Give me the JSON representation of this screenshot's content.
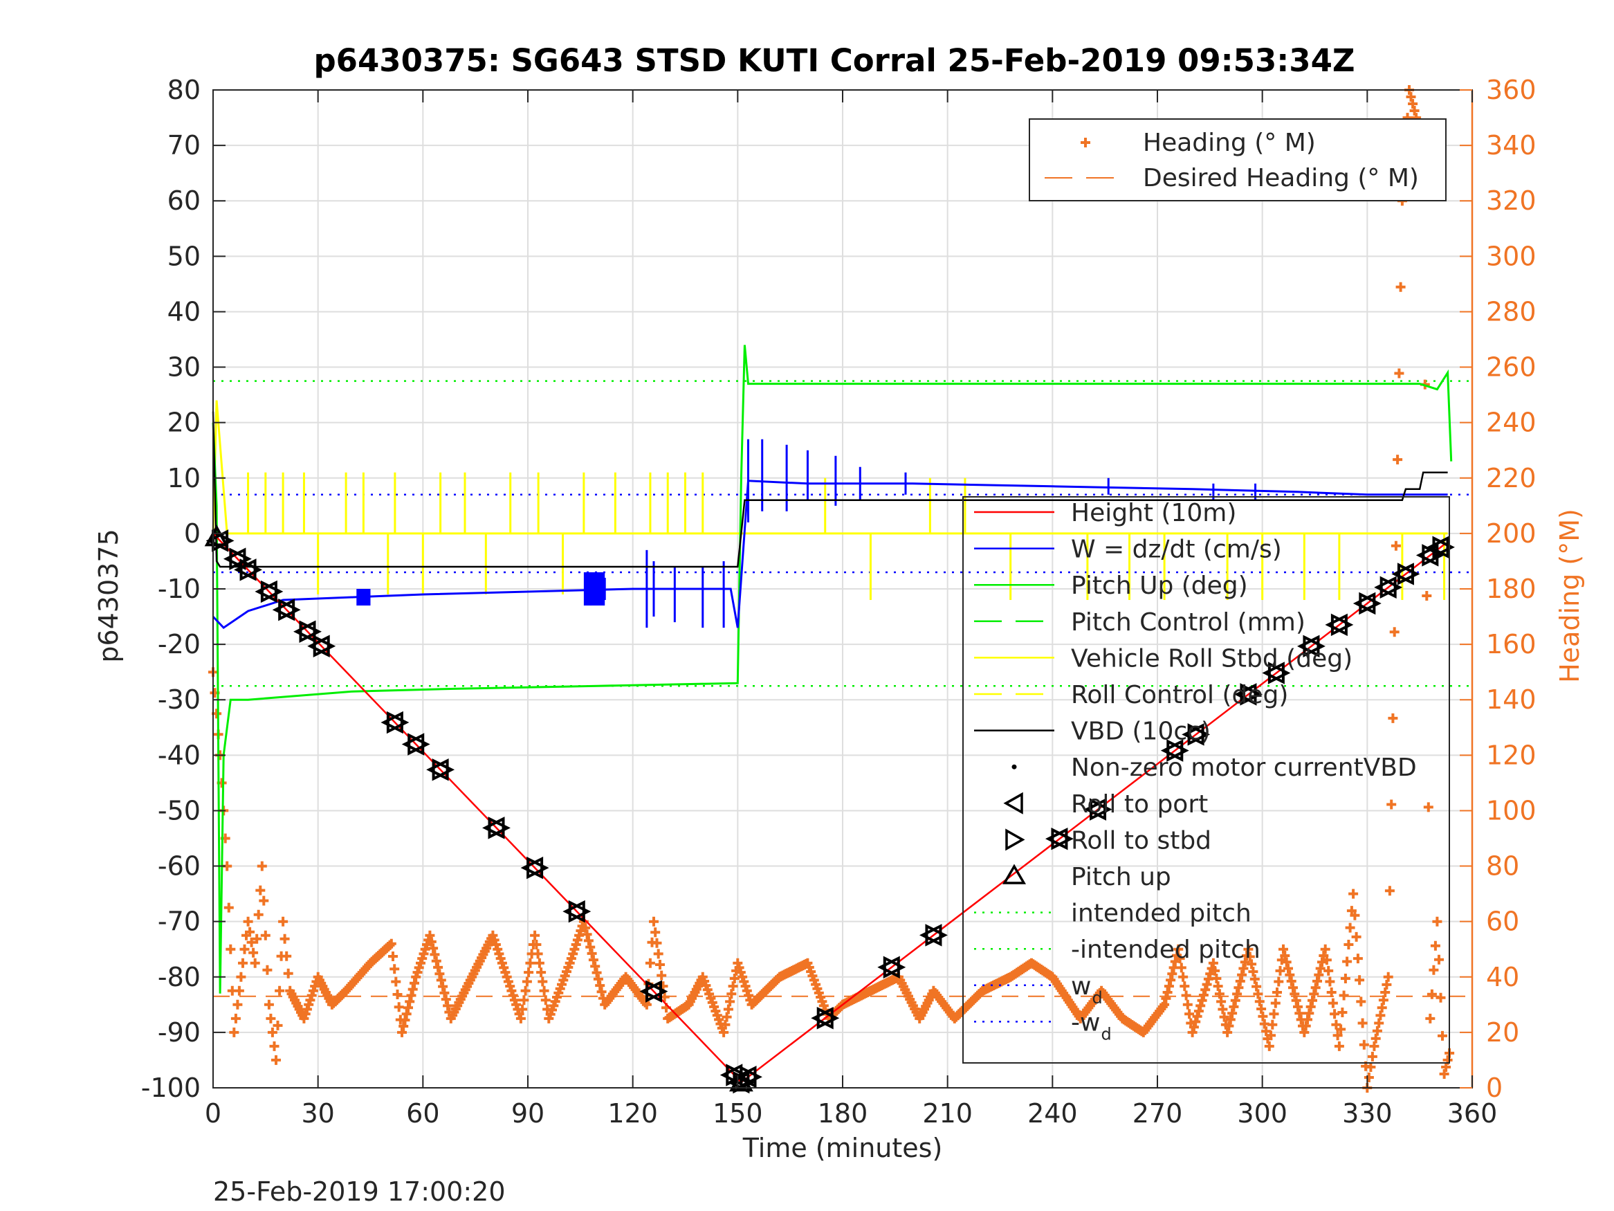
{
  "chart_data": {
    "type": "line",
    "title": "p6430375: SG643 STSD KUTI Corral 25-Feb-2019 09:53:34Z",
    "xlabel": "Time (minutes)",
    "ylabel": "p6430375",
    "ylabel_right": "Heading (°M)",
    "footer": "25-Feb-2019 17:00:20",
    "xlim": [
      0,
      360
    ],
    "ylim": [
      -100,
      80
    ],
    "ylim_right": [
      0,
      360
    ],
    "x_ticks": [
      "0",
      "30",
      "60",
      "90",
      "120",
      "150",
      "180",
      "210",
      "240",
      "270",
      "300",
      "330",
      "360"
    ],
    "y_ticks": [
      "80",
      "70",
      "60",
      "50",
      "40",
      "30",
      "20",
      "10",
      "0",
      "-10",
      "-20",
      "-30",
      "-40",
      "-50",
      "-60",
      "-70",
      "-80",
      "-90",
      "-100"
    ],
    "y_ticks_right": [
      "360",
      "340",
      "320",
      "300",
      "280",
      "260",
      "240",
      "220",
      "200",
      "180",
      "160",
      "140",
      "120",
      "100",
      "80",
      "60",
      "40",
      "20",
      "0"
    ],
    "grid": true,
    "colors": {
      "height": "#ff0000",
      "w": "#0000ff",
      "pitch": "#00ee00",
      "roll": "#ffff00",
      "vbd": "#000000",
      "heading": "#f07424",
      "axes": "#262626"
    },
    "legend_heading": [
      {
        "label": "Heading (° M)",
        "style": "plus"
      },
      {
        "label": "Desired Heading (° M)",
        "style": "dash"
      }
    ],
    "legend_main": [
      {
        "label": "Height (10m)",
        "style": "line",
        "color": "#ff0000"
      },
      {
        "label": "W = dz/dt (cm/s)",
        "style": "line",
        "color": "#0000ff"
      },
      {
        "label": "Pitch Up (deg)",
        "style": "line",
        "color": "#00ee00"
      },
      {
        "label": "Pitch Control (mm)",
        "style": "dash",
        "color": "#00ee00"
      },
      {
        "label": "Vehicle Roll Stbd (deg)",
        "style": "line",
        "color": "#ffff00"
      },
      {
        "label": "Roll Control (deg)",
        "style": "dash",
        "color": "#ffff00"
      },
      {
        "label": "VBD (10cc)",
        "style": "line",
        "color": "#000000"
      },
      {
        "label": "Non-zero motor currentVBD",
        "style": "dot",
        "color": "#000000"
      },
      {
        "label": "Roll to port",
        "style": "tri-left",
        "color": "#000000"
      },
      {
        "label": "Roll to stbd",
        "style": "tri-right",
        "color": "#000000"
      },
      {
        "label": "Pitch up",
        "style": "tri-up",
        "color": "#000000"
      },
      {
        "label": "intended pitch",
        "style": "dot-line",
        "color": "#00ee00"
      },
      {
        "label": "-intended pitch",
        "style": "dot-line",
        "color": "#00ee00"
      },
      {
        "label": "w",
        "sub": "d",
        "style": "dot-line",
        "color": "#0000ff"
      },
      {
        "label": "-w",
        "sub": "d",
        "style": "dot-line",
        "color": "#0000ff"
      }
    ],
    "series": [
      {
        "name": "Height (10m)",
        "axis": "left",
        "x": [
          0,
          151,
          352
        ],
        "y": [
          0,
          -99,
          -2
        ]
      },
      {
        "name": "Pitch Up (deg)",
        "axis": "left",
        "x": [
          0,
          1,
          2,
          3,
          5,
          10,
          40,
          70,
          110,
          150,
          151,
          152,
          153,
          200,
          300,
          345,
          350,
          353,
          354
        ],
        "y": [
          20,
          5,
          -83,
          -40,
          -30,
          -30,
          -28.5,
          -28,
          -27.5,
          -27,
          10,
          34,
          27,
          27,
          27,
          27,
          26,
          29,
          13
        ]
      },
      {
        "name": "W = dz/dt (cm/s)",
        "axis": "left",
        "x": [
          0,
          3,
          10,
          20,
          40,
          60,
          90,
          120,
          148,
          150,
          153,
          170,
          200,
          240,
          280,
          310,
          330,
          353
        ],
        "y": [
          -15,
          -17,
          -14,
          -12,
          -11.5,
          -11,
          -10.5,
          -10,
          -10,
          -17,
          9.5,
          9,
          9,
          8.5,
          8,
          7.5,
          7,
          7
        ]
      },
      {
        "name": "Vehicle Roll Stbd (deg)",
        "axis": "left",
        "x": [
          0,
          1,
          4,
          150,
          152,
          353
        ],
        "y": [
          0,
          24,
          0,
          0,
          0,
          0
        ]
      },
      {
        "name": "VBD (10cc)",
        "axis": "left",
        "x": [
          0,
          1,
          2,
          150,
          152,
          153,
          300,
          340,
          341,
          345,
          346,
          353
        ],
        "y": [
          22,
          -5,
          -6,
          -6,
          6,
          6,
          6,
          6,
          8,
          8,
          11,
          11
        ]
      },
      {
        "name": "intended pitch",
        "axis": "left",
        "x": [
          0,
          360
        ],
        "y": [
          27.5,
          27.5
        ]
      },
      {
        "name": "-intended pitch",
        "axis": "left",
        "x": [
          0,
          360
        ],
        "y": [
          -27.5,
          -27.5
        ]
      },
      {
        "name": "wd",
        "axis": "left",
        "x": [
          0,
          360
        ],
        "y": [
          7,
          7
        ]
      },
      {
        "name": "-wd",
        "axis": "left",
        "x": [
          0,
          360
        ],
        "y": [
          -7,
          -7
        ]
      },
      {
        "name": "Desired Heading (° M)",
        "axis": "right",
        "x": [
          0,
          360
        ],
        "y": [
          33,
          33
        ]
      },
      {
        "name": "Heading (° M)",
        "axis": "right",
        "x": [
          0,
          2,
          4,
          6,
          8,
          10,
          12,
          14,
          16,
          18,
          20,
          22,
          26,
          30,
          34,
          38,
          45,
          51,
          54,
          58,
          62,
          68,
          74,
          80,
          88,
          92,
          96,
          102,
          106,
          112,
          118,
          124,
          126,
          130,
          136,
          140,
          146,
          150,
          154,
          162,
          170,
          176,
          180,
          188,
          196,
          202,
          206,
          212,
          220,
          228,
          234,
          240,
          248,
          254,
          260,
          266,
          272,
          276,
          280,
          286,
          290,
          296,
          302,
          306,
          312,
          318,
          322,
          326,
          330,
          332,
          336,
          340,
          342,
          344,
          346,
          348,
          350,
          352,
          354
        ],
        "y": [
          150,
          120,
          80,
          20,
          40,
          60,
          45,
          80,
          30,
          10,
          60,
          35,
          25,
          40,
          30,
          35,
          45,
          52,
          20,
          40,
          55,
          25,
          40,
          55,
          25,
          55,
          25,
          45,
          60,
          30,
          40,
          30,
          60,
          25,
          30,
          40,
          20,
          45,
          30,
          40,
          45,
          25,
          30,
          35,
          40,
          25,
          35,
          25,
          35,
          40,
          45,
          40,
          25,
          35,
          25,
          20,
          30,
          50,
          20,
          45,
          20,
          50,
          15,
          50,
          20,
          50,
          15,
          70,
          0,
          15,
          40,
          320,
          360,
          350,
          330,
          25,
          60,
          5,
          15
        ]
      }
    ],
    "markers": {
      "roll_pairs_x": [
        2,
        7,
        10,
        16,
        21,
        27,
        31,
        52,
        58,
        65,
        81,
        92,
        104,
        126,
        149,
        151,
        153,
        175,
        194,
        206,
        242,
        253,
        275,
        281,
        296,
        304,
        314,
        322,
        330,
        336,
        341,
        348,
        351
      ],
      "pitch_up_x": [
        1,
        151
      ]
    }
  }
}
